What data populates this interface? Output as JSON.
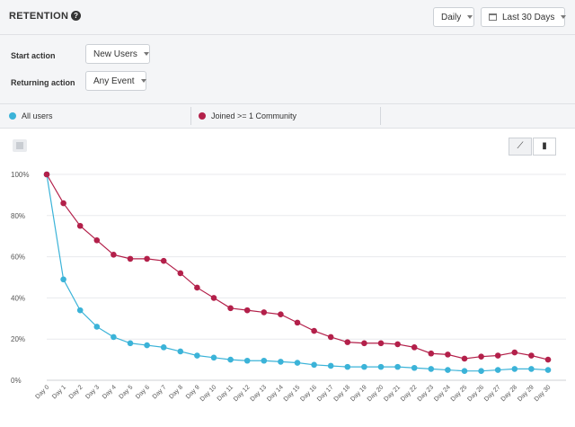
{
  "header": {
    "title": "RETENTION",
    "interval": "Daily",
    "date_range": "Last 30 Days"
  },
  "filters": {
    "start_action_label": "Start action",
    "start_action_value": "New Users",
    "returning_action_label": "Returning action",
    "returning_action_value": "Any Event"
  },
  "legend": [
    {
      "label": "All users",
      "color": "#3bb3d8"
    },
    {
      "label": "Joined >= 1 Community",
      "color": "#b3204a"
    }
  ],
  "chart_data": {
    "type": "line",
    "x": [
      "Day 0",
      "Day 1",
      "Day 2",
      "Day 3",
      "Day 4",
      "Day 5",
      "Day 6",
      "Day 7",
      "Day 8",
      "Day 9",
      "Day 10",
      "Day 11",
      "Day 12",
      "Day 13",
      "Day 14",
      "Day 15",
      "Day 16",
      "Day 17",
      "Day 18",
      "Day 19",
      "Day 20",
      "Day 21",
      "Day 22",
      "Day 23",
      "Day 24",
      "Day 25",
      "Day 26",
      "Day 27",
      "Day 28",
      "Day 29",
      "Day 30"
    ],
    "y_ticks": [
      "0%",
      "20%",
      "40%",
      "60%",
      "80%",
      "100%"
    ],
    "ylim": [
      0,
      100
    ],
    "grid": true,
    "series": [
      {
        "name": "All users",
        "color": "#3bb3d8",
        "values": [
          100,
          49,
          34,
          26,
          21,
          18,
          17,
          16,
          14,
          12,
          11,
          10,
          9.5,
          9.5,
          9,
          8.5,
          7.5,
          7,
          6.5,
          6.5,
          6.5,
          6.5,
          6,
          5.5,
          5,
          4.5,
          4.5,
          5,
          5.5,
          5.5,
          5
        ]
      },
      {
        "name": "Joined >= 1 Community",
        "color": "#b3204a",
        "values": [
          100,
          86,
          75,
          68,
          61,
          59,
          59,
          58,
          52,
          45,
          40,
          35,
          34,
          33,
          32,
          28,
          24,
          21,
          18.5,
          18,
          18,
          17.5,
          16,
          13,
          12.5,
          10.5,
          11.5,
          12,
          13.5,
          12,
          10
        ]
      }
    ]
  }
}
